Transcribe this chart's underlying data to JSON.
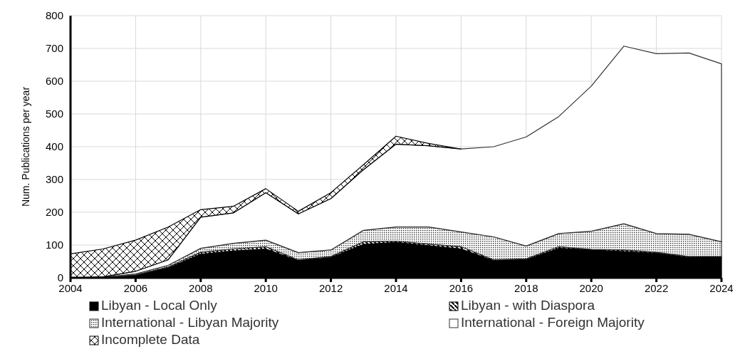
{
  "chart_data": {
    "type": "area",
    "stacked": true,
    "ylabel": "Num. Publications per year",
    "x": [
      2004,
      2005,
      2006,
      2007,
      2008,
      2009,
      2010,
      2011,
      2012,
      2013,
      2014,
      2015,
      2016,
      2017,
      2018,
      2019,
      2020,
      2021,
      2022,
      2023,
      2024
    ],
    "xlim": [
      2004,
      2024
    ],
    "xticks": [
      2004,
      2006,
      2008,
      2010,
      2012,
      2014,
      2016,
      2018,
      2020,
      2022,
      2024
    ],
    "ylim": [
      0,
      800
    ],
    "yticks": [
      0,
      100,
      200,
      300,
      400,
      500,
      600,
      700,
      800
    ],
    "grid": true,
    "legend": "bottom",
    "series": [
      {
        "name": "Libyan - Local Only",
        "color": "#000000",
        "values": [
          0,
          1,
          8,
          30,
          72,
          82,
          88,
          52,
          62,
          102,
          108,
          98,
          88,
          52,
          55,
          90,
          85,
          80,
          75,
          62,
          65
        ]
      },
      {
        "name": "Libyan - with Diaspora",
        "color": "#000000",
        "values": [
          0,
          0,
          1,
          3,
          6,
          6,
          7,
          3,
          3,
          8,
          4,
          5,
          7,
          3,
          3,
          5,
          2,
          5,
          3,
          3,
          0
        ]
      },
      {
        "name": "International - Libyan Majority",
        "color": "#333333",
        "values": [
          0,
          1,
          3,
          5,
          12,
          17,
          20,
          22,
          20,
          35,
          43,
          52,
          45,
          70,
          39,
          40,
          55,
          80,
          57,
          68,
          45
        ]
      },
      {
        "name": "International - Foreign Majority",
        "color": "#333333",
        "values": [
          0,
          1,
          8,
          17,
          95,
          93,
          145,
          118,
          157,
          185,
          253,
          248,
          253,
          275,
          333,
          357,
          443,
          542,
          549,
          553,
          543
        ]
      },
      {
        "name": "Incomplete Data",
        "color": "#000000",
        "values": [
          73,
          85,
          95,
          100,
          23,
          20,
          12,
          8,
          18,
          15,
          24,
          7,
          0,
          null,
          null,
          null,
          null,
          null,
          null,
          null,
          null
        ]
      }
    ]
  }
}
